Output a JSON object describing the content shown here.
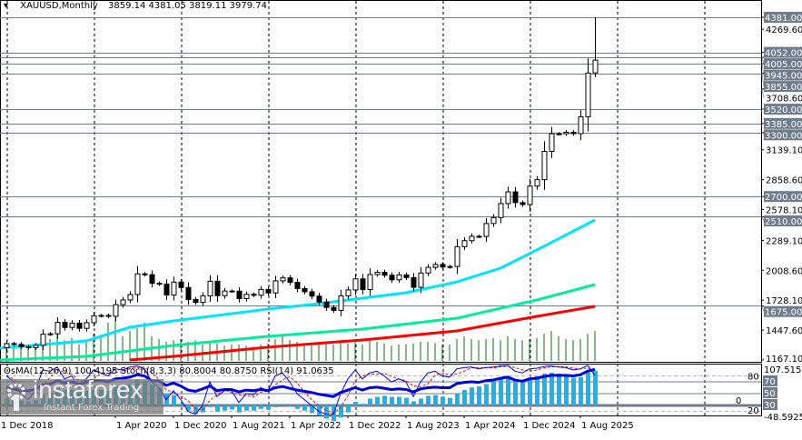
{
  "header": {
    "symbol": "XAUUSD,Monthly",
    "ohlc": "3859.14 4381.05 3819.11 3979.74"
  },
  "indicator_header": {
    "osma": "OsMA(12,26,9) 100.4195",
    "stoch": "Stoch(8,3,3) 80.8004 80.8750",
    "rsi": "RSI(14) 91.0635"
  },
  "colors": {
    "ma_fast": "#00e5ff",
    "ma_mid": "#00ee99",
    "ma_slow": "#ff0000",
    "volume": "#007700",
    "osma": "#18b4f0",
    "rsi": "#0000dd",
    "stoch_main": "#0000ff",
    "stoch_signal": "#ff0000",
    "level_label_bg": "#6f7c8c"
  },
  "chart_data": {
    "type": "candlestick",
    "start_month": "2019-01",
    "candles": {
      "close": [
        1321,
        1313,
        1292,
        1283,
        1305,
        1409,
        1413,
        1520,
        1472,
        1513,
        1464,
        1517,
        1582,
        1585,
        1577,
        1686,
        1730,
        1781,
        1975,
        1967,
        1886,
        1879,
        1776,
        1898,
        1847,
        1734,
        1707,
        1769,
        1906,
        1770,
        1814,
        1813,
        1743,
        1783,
        1774,
        1829,
        1796,
        1909,
        1937,
        1896,
        1837,
        1807,
        1766,
        1711,
        1660,
        1633,
        1768,
        1824,
        1928,
        1827,
        1969,
        1990,
        1962,
        1919,
        1965,
        1940,
        1849,
        1983,
        2036,
        2063,
        2039,
        2044,
        2230,
        2286,
        2327,
        2326,
        2447,
        2503,
        2634,
        2744,
        2643,
        2625,
        2798,
        2858,
        3124,
        3289,
        3289,
        3303,
        3290,
        3448,
        3858,
        3979.74
      ],
      "last": {
        "open": 3859.14,
        "high": 4381.05,
        "low": 3819.11,
        "close": 3979.74
      }
    },
    "y_ticks": [
      "4269.60",
      "3708.60",
      "3139.10",
      "2858.60",
      "2578.10",
      "2289.10",
      "2008.60",
      "1728.10",
      "1447.60",
      "1167.10"
    ],
    "y_range": [
      1167.1,
      4381.05
    ],
    "levels": [
      "4381.00",
      "4052.00",
      "4005.00",
      "3945.00",
      "3855.00",
      "3520.00",
      "3385.00",
      "3300.00",
      "2700.00",
      "2510.00",
      "1675.00"
    ],
    "x_ticks": [
      {
        "date": "2018-12",
        "label": "1 Dec 2018"
      },
      {
        "date": "2020-04",
        "label": "1 Apr 2020"
      },
      {
        "date": "2020-12",
        "label": "1 Dec 2020"
      },
      {
        "date": "2021-08",
        "label": "1 Aug 2021"
      },
      {
        "date": "2022-04",
        "label": "1 Apr 2022"
      },
      {
        "date": "2022-12",
        "label": "1 Dec 2022"
      },
      {
        "date": "2023-08",
        "label": "1 Aug 2023"
      },
      {
        "date": "2024-04",
        "label": "1 Apr 2024"
      },
      {
        "date": "2024-12",
        "label": "1 Dec 2024"
      },
      {
        "date": "2025-08",
        "label": "1 Aug 2025"
      }
    ],
    "moving_averages": [
      {
        "color": "ma_fast",
        "points": [
          [
            "2018-12",
            1278
          ],
          [
            "2019-12",
            1346
          ],
          [
            "2020-06",
            1474
          ],
          [
            "2020-12",
            1534
          ],
          [
            "2022-01",
            1645
          ],
          [
            "2022-07",
            1687
          ],
          [
            "2023-02",
            1747
          ],
          [
            "2023-08",
            1798
          ],
          [
            "2024-03",
            1900
          ],
          [
            "2024-09",
            2028
          ],
          [
            "2025-02",
            2199
          ],
          [
            "2025-10",
            2480
          ]
        ]
      },
      {
        "color": "ma_mid",
        "points": [
          [
            "2018-12",
            1167
          ],
          [
            "2019-12",
            1201
          ],
          [
            "2020-12",
            1304
          ],
          [
            "2022-01",
            1389
          ],
          [
            "2023-02",
            1457
          ],
          [
            "2024-03",
            1559
          ],
          [
            "2025-02",
            1730
          ],
          [
            "2025-10",
            1875
          ]
        ]
      },
      {
        "color": "ma_slow",
        "points": [
          [
            "2020-06",
            1167
          ],
          [
            "2020-12",
            1201
          ],
          [
            "2022-01",
            1287
          ],
          [
            "2023-02",
            1355
          ],
          [
            "2024-03",
            1440
          ],
          [
            "2025-02",
            1576
          ],
          [
            "2025-10",
            1670
          ]
        ]
      }
    ],
    "volume": [
      30,
      25,
      28,
      22,
      30,
      45,
      40,
      55,
      38,
      42,
      30,
      35,
      50,
      48,
      70,
      90,
      45,
      55,
      60,
      70,
      45,
      40,
      35,
      38,
      40,
      35,
      38,
      30,
      35,
      32,
      28,
      30,
      30,
      28,
      26,
      30,
      32,
      40,
      45,
      38,
      35,
      30,
      32,
      30,
      35,
      30,
      35,
      32,
      35,
      30,
      40,
      35,
      32,
      28,
      30,
      30,
      32,
      35,
      35,
      33,
      30,
      30,
      40,
      45,
      40,
      38,
      40,
      42,
      38,
      45,
      40,
      38,
      40,
      42,
      50,
      55,
      45,
      40,
      38,
      40,
      50,
      55
    ],
    "indicator": {
      "y_range": [
        -48.5925,
        107.5153
      ],
      "rsi_levels": [
        80,
        70,
        50,
        30,
        20
      ],
      "level_labels": [
        "80",
        "70",
        "50",
        "30",
        "20",
        "0"
      ],
      "y_labels": [
        "107.5153",
        "-48.5925"
      ],
      "osma": [
        20,
        18,
        15,
        12,
        15,
        30,
        38,
        50,
        45,
        45,
        40,
        42,
        45,
        45,
        42,
        55,
        58,
        62,
        75,
        72,
        60,
        50,
        35,
        30,
        5,
        -15,
        -25,
        -20,
        -5,
        -18,
        -15,
        -12,
        -20,
        -15,
        -15,
        -10,
        -12,
        -5,
        0,
        -2,
        -10,
        -15,
        -22,
        -30,
        -38,
        -45,
        -35,
        -20,
        10,
        5,
        20,
        25,
        28,
        25,
        25,
        22,
        12,
        20,
        28,
        30,
        25,
        22,
        35,
        45,
        52,
        55,
        62,
        68,
        78,
        85,
        75,
        70,
        80,
        85,
        92,
        95,
        92,
        90,
        80,
        82,
        95,
        100.4195
      ],
      "rsi": [
        60,
        58,
        55,
        55,
        57,
        65,
        66,
        72,
        68,
        70,
        66,
        69,
        72,
        72,
        70,
        75,
        76,
        78,
        82,
        80,
        72,
        71,
        64,
        68,
        63,
        56,
        54,
        58,
        63,
        55,
        57,
        57,
        53,
        56,
        55,
        57,
        55,
        60,
        62,
        59,
        56,
        54,
        52,
        49,
        47,
        45,
        52,
        56,
        60,
        56,
        60,
        61,
        59,
        57,
        58,
        57,
        53,
        58,
        60,
        61,
        60,
        60,
        67,
        69,
        70,
        69,
        72,
        73,
        76,
        78,
        73,
        71,
        75,
        76,
        79,
        81,
        81,
        81,
        80,
        82,
        88,
        91.0635
      ],
      "stoch_main": [
        80,
        70,
        50,
        40,
        55,
        90,
        88,
        95,
        75,
        80,
        60,
        75,
        90,
        85,
        80,
        92,
        90,
        95,
        97,
        92,
        70,
        60,
        40,
        55,
        40,
        20,
        15,
        30,
        70,
        45,
        55,
        55,
        35,
        50,
        48,
        60,
        55,
        80,
        85,
        70,
        50,
        40,
        30,
        20,
        15,
        15,
        50,
        75,
        90,
        75,
        85,
        88,
        80,
        70,
        75,
        70,
        45,
        70,
        85,
        88,
        80,
        78,
        92,
        94,
        95,
        92,
        94,
        95,
        97,
        98,
        88,
        85,
        92,
        93,
        96,
        97,
        95,
        94,
        90,
        92,
        98,
        80.8004
      ]
    }
  },
  "watermark": {
    "brand": "instaforex",
    "tagline": "Instant Forex Trading"
  }
}
